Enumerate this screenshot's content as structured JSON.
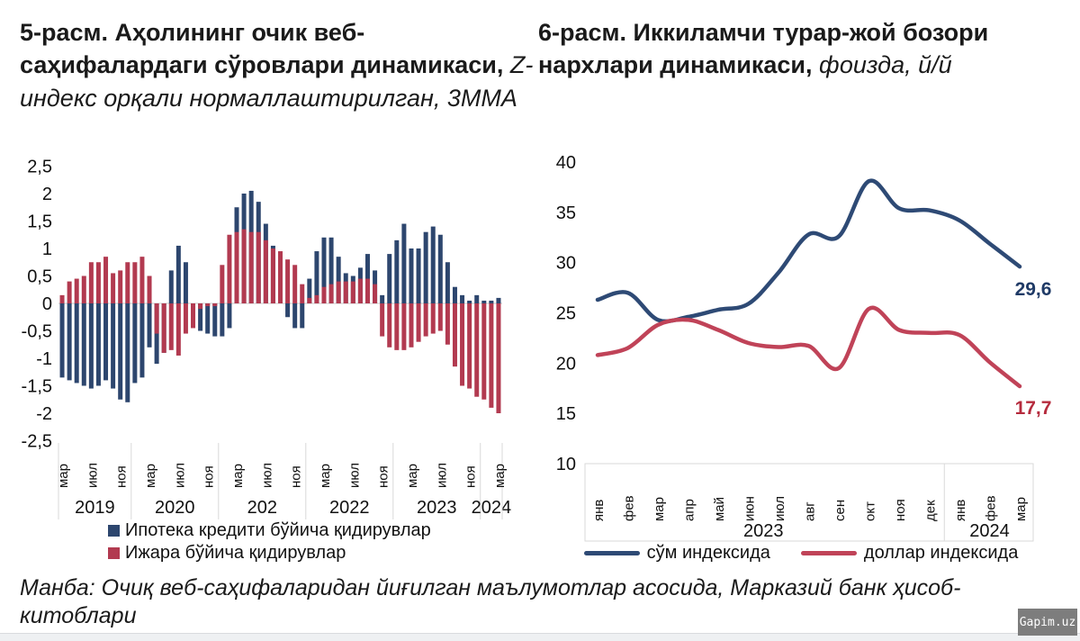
{
  "chart_data": [
    {
      "id": "fig5",
      "type": "bar",
      "title_bold": "5-расм. Аҳолининг очик веб-саҳифалардаги сўровлари динамикаси,",
      "title_italic": " Z-индекс орқали нормаллаштирилган, 3ММА",
      "start_month": "2019-03",
      "ylim": [
        -2.5,
        2.5
      ],
      "ytick_step": 0.5,
      "ytick_labels": [
        "2,5",
        "2",
        "1,5",
        "1",
        "0,5",
        "0",
        "-0,5",
        "-1",
        "-1,5",
        "-2",
        "-2,5"
      ],
      "xticks": {
        "positions": [
          0,
          4,
          8,
          12,
          16,
          20,
          24,
          28,
          32,
          36,
          40,
          44,
          48,
          52,
          56,
          60
        ],
        "labels": [
          "мар",
          "июл",
          "ноя",
          "мар",
          "июл",
          "ноя",
          "мар",
          "июл",
          "ноя",
          "мар",
          "июл",
          "ноя",
          "мар",
          "июл",
          "ноя",
          "мар"
        ]
      },
      "year_groups": [
        {
          "label": "2019",
          "months": 10
        },
        {
          "label": "2020",
          "months": 12
        },
        {
          "label": "202",
          "months": 12
        },
        {
          "label": "2022",
          "months": 12
        },
        {
          "label": "2023",
          "months": 12
        },
        {
          "label": "2024",
          "months": 3
        }
      ],
      "grid": "off",
      "legend_position": "bottom-left",
      "series": [
        {
          "name": "Ипотека кредити бўйича қидирувлар",
          "color": "#2d466e",
          "values": [
            -1.35,
            -1.4,
            -1.45,
            -1.5,
            -1.55,
            -1.5,
            -1.4,
            -1.55,
            -1.75,
            -1.8,
            -1.45,
            -1.35,
            -0.8,
            -1.1,
            -0.9,
            0.6,
            1.05,
            0.75,
            -0.1,
            -0.5,
            -0.55,
            -0.6,
            -0.6,
            -0.45,
            1.75,
            2.0,
            2.05,
            1.85,
            1.45,
            1.05,
            0.9,
            -0.25,
            -0.45,
            -0.45,
            0.45,
            0.95,
            1.2,
            1.2,
            0.85,
            0.55,
            0.5,
            0.65,
            0.9,
            0.6,
            0.15,
            0.9,
            1.15,
            1.45,
            1.0,
            1.0,
            1.3,
            1.4,
            1.25,
            0.75,
            0.3,
            0.15,
            0.05,
            0.15,
            0.05,
            0.05,
            0.1
          ]
        },
        {
          "name": "Ижара бўйича қидирувлар",
          "color": "#b23a50",
          "values": [
            0.15,
            0.4,
            0.45,
            0.5,
            0.75,
            0.75,
            0.85,
            0.55,
            0.6,
            0.75,
            0.75,
            0.85,
            0.5,
            -0.55,
            -0.9,
            -0.85,
            -0.95,
            -0.55,
            -0.45,
            -0.1,
            -0.05,
            -0.05,
            0.7,
            1.25,
            1.3,
            1.35,
            1.3,
            1.3,
            1.15,
            1.0,
            0.95,
            0.8,
            0.7,
            0.35,
            0.1,
            0.15,
            0.3,
            0.35,
            0.4,
            0.4,
            0.4,
            0.45,
            0.45,
            0.35,
            -0.6,
            -0.8,
            -0.85,
            -0.85,
            -0.8,
            -0.7,
            -0.6,
            -0.55,
            -0.5,
            -0.75,
            -1.15,
            -1.5,
            -1.55,
            -1.7,
            -1.75,
            -1.9,
            -2.0
          ]
        }
      ]
    },
    {
      "id": "fig6",
      "type": "line",
      "title_bold": "6-расм. Иккиламчи турар-жой бозори нархлари динамикаси,",
      "title_italic": " фоизда, й/й",
      "ylim": [
        10,
        40
      ],
      "ytick_step": 5,
      "ytick_labels": [
        "40",
        "35",
        "30",
        "25",
        "20",
        "15",
        "10"
      ],
      "categories": [
        "янв",
        "фев",
        "мар",
        "апр",
        "май",
        "июн",
        "июл",
        "авг",
        "сен",
        "окт",
        "ноя",
        "дек",
        "янв",
        "фев",
        "мар"
      ],
      "year_groups": [
        {
          "label": "2023",
          "months": 12
        },
        {
          "label": "2024",
          "months": 3
        }
      ],
      "grid": "off",
      "legend_position": "bottom-center",
      "series": [
        {
          "name": "сўм индексида",
          "color": "#2e4a75",
          "end_label": "29,6",
          "end_label_color": "#1f3a66",
          "values": [
            26.3,
            27.0,
            24.3,
            24.6,
            25.3,
            25.9,
            29.0,
            32.8,
            32.6,
            38.1,
            35.4,
            35.2,
            34.2,
            31.9,
            29.6
          ]
        },
        {
          "name": "доллар индексида",
          "color": "#c04358",
          "end_label": "17,7",
          "end_label_color": "#b52b3d",
          "values": [
            20.8,
            21.5,
            23.8,
            24.3,
            23.3,
            22.0,
            21.6,
            21.7,
            19.5,
            25.4,
            23.3,
            23.0,
            22.8,
            20.1,
            17.7
          ]
        }
      ]
    }
  ],
  "source_note": "Манба: Очиқ веб-саҳифаларидан йиғилган маълумотлар асосида, Марказий банк ҳисоб-китоблари",
  "watermark": "Gapim.uz",
  "colors": {
    "navy": "#2d466e",
    "crimson": "#b23a50",
    "axis_gray": "#d9d9d9",
    "zero_line": "#c8c8c8",
    "text": "#111111",
    "watermark_bg": "#7d7d7d",
    "footer_strip": "#eef0f2"
  }
}
